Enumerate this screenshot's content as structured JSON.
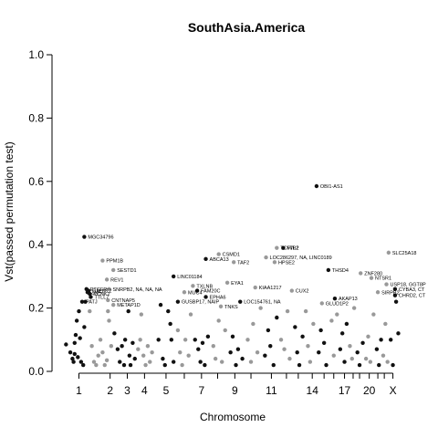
{
  "chart_data": {
    "type": "scatter",
    "title": "SouthAsia.America",
    "xlabel": "Chromosome",
    "ylabel": "Vst(passed permutation test)",
    "ylim": [
      0,
      1
    ],
    "yticks": [
      "0.0",
      "0.2",
      "0.4",
      "0.6",
      "0.8",
      "1.0"
    ],
    "ytick_values": [
      0,
      0.2,
      0.4,
      0.6,
      0.8,
      1.0
    ],
    "xticks": [
      "1",
      "2",
      "3",
      "4",
      "5",
      "7",
      "9",
      "11",
      "14",
      "17",
      "20",
      "X"
    ],
    "xtick_positions": [
      1,
      2,
      3,
      4,
      5,
      7,
      9,
      11,
      14,
      17,
      20,
      23
    ],
    "chromosome_boundaries": [
      1,
      2,
      3,
      4,
      5,
      6,
      7,
      8,
      9,
      10,
      11,
      12,
      13,
      14,
      15,
      16,
      17,
      18,
      19,
      20,
      21,
      22,
      23
    ],
    "point_colors": {
      "odd": "#111111",
      "even": "#999999"
    },
    "labeled_points": [
      {
        "label": "MGC34796",
        "chr": 1,
        "x": 0.95,
        "y": 0.425
      },
      {
        "label": "PATJ",
        "chr": 1,
        "x": 0.85,
        "y": 0.22
      },
      {
        "label": "PTGFR",
        "chr": 1,
        "x": 1.05,
        "y": 0.26
      },
      {
        "label": "GALNT2",
        "chr": 1,
        "x": 1.15,
        "y": 0.255
      },
      {
        "label": "ZNF7",
        "chr": 1,
        "x": 1.1,
        "y": 0.25
      },
      {
        "label": "KCNK2",
        "chr": 1,
        "x": 1.2,
        "y": 0.245
      },
      {
        "label": "TTLL7",
        "chr": 1,
        "x": 1.25,
        "y": 0.235
      },
      {
        "label": "PPM1B",
        "chr": 2,
        "x": 1.8,
        "y": 0.35
      },
      {
        "label": "SESTD1",
        "chr": 2,
        "x": 2.3,
        "y": 0.32
      },
      {
        "label": "REV1",
        "chr": 2,
        "x": 2.0,
        "y": 0.29
      },
      {
        "label": "SNRPB2, NA, NA, NA",
        "chr": 2,
        "x": 2.1,
        "y": 0.26
      },
      {
        "label": "CNTNAP5",
        "chr": 2,
        "x": 2.05,
        "y": 0.225
      },
      {
        "label": "METAP1D",
        "chr": 2,
        "x": 2.3,
        "y": 0.21
      },
      {
        "label": "LINC01184",
        "chr": 5,
        "x": 5.1,
        "y": 0.3
      },
      {
        "label": "ABCA13",
        "chr": 7,
        "x": 6.6,
        "y": 0.355
      },
      {
        "label": "CSMD1",
        "chr": 8,
        "x": 7.2,
        "y": 0.37
      },
      {
        "label": "TXLNB",
        "chr": 6,
        "x": 6.0,
        "y": 0.27
      },
      {
        "label": "MUC4",
        "chr": 6,
        "x": 5.6,
        "y": 0.25
      },
      {
        "label": "FAM20C",
        "chr": 7,
        "x": 6.2,
        "y": 0.255
      },
      {
        "label": "EPHA6",
        "chr": 7,
        "x": 6.6,
        "y": 0.235
      },
      {
        "label": "GUSBP17, NAIP",
        "chr": 5,
        "x": 5.3,
        "y": 0.22
      },
      {
        "label": "TNKS",
        "chr": 8,
        "x": 7.3,
        "y": 0.205
      },
      {
        "label": "EYA1",
        "chr": 8,
        "x": 7.6,
        "y": 0.28
      },
      {
        "label": "TAF2",
        "chr": 8,
        "x": 7.9,
        "y": 0.345
      },
      {
        "label": "LOC154761, NA",
        "chr": 9,
        "x": 8.2,
        "y": 0.22
      },
      {
        "label": "KIAA1217",
        "chr": 10,
        "x": 8.9,
        "y": 0.265
      },
      {
        "label": "TCF7L2",
        "chr": 10,
        "x": 9.9,
        "y": 0.39
      },
      {
        "label": "MIR2",
        "chr": 11,
        "x": 10.2,
        "y": 0.39
      },
      {
        "label": "LOC286297, NA, LINC0189",
        "chr": 10,
        "x": 9.4,
        "y": 0.36
      },
      {
        "label": "HPSE2",
        "chr": 10,
        "x": 9.8,
        "y": 0.345
      },
      {
        "label": "CUX2",
        "chr": 12,
        "x": 10.6,
        "y": 0.255
      },
      {
        "label": "OBI1-AS1",
        "chr": 13,
        "x": 11.75,
        "y": 0.585
      },
      {
        "label": "THSD4",
        "chr": 15,
        "x": 12.3,
        "y": 0.32
      },
      {
        "label": "AKAP13",
        "chr": 15,
        "x": 12.6,
        "y": 0.23
      },
      {
        "label": "GLUD1P2",
        "chr": 14,
        "x": 12.0,
        "y": 0.215
      },
      {
        "label": "SIRPB2",
        "chr": 20,
        "x": 14.6,
        "y": 0.25
      },
      {
        "label": "ZNF280",
        "chr": 18,
        "x": 13.8,
        "y": 0.31
      },
      {
        "label": "NTSR1",
        "chr": 20,
        "x": 14.3,
        "y": 0.295
      },
      {
        "label": "SLC25A18",
        "chr": 22,
        "x": 15.1,
        "y": 0.375
      },
      {
        "label": "USP18, GGT8P",
        "chr": 22,
        "x": 15.0,
        "y": 0.275
      },
      {
        "label": "CYBA3, CT",
        "chr": 23,
        "x": 15.4,
        "y": 0.26
      },
      {
        "label": "CHRD2, CT",
        "chr": 23,
        "x": 15.4,
        "y": 0.24
      }
    ],
    "background_points": [
      {
        "chr": 1,
        "x": 0.1,
        "y": 0.085
      },
      {
        "chr": 1,
        "x": 0.3,
        "y": 0.06
      },
      {
        "chr": 1,
        "x": 0.4,
        "y": 0.04
      },
      {
        "chr": 1,
        "x": 0.45,
        "y": 0.03
      },
      {
        "chr": 1,
        "x": 0.5,
        "y": 0.055
      },
      {
        "chr": 1,
        "x": 0.55,
        "y": 0.115
      },
      {
        "chr": 1,
        "x": 0.6,
        "y": 0.16
      },
      {
        "chr": 1,
        "x": 0.7,
        "y": 0.19
      },
      {
        "chr": 1,
        "x": 0.75,
        "y": 0.105
      },
      {
        "chr": 1,
        "x": 0.8,
        "y": 0.03
      },
      {
        "chr": 1,
        "x": 0.9,
        "y": 0.02
      },
      {
        "chr": 1,
        "x": 0.95,
        "y": 0.14
      },
      {
        "chr": 1,
        "x": 1.0,
        "y": 0.22
      },
      {
        "chr": 1,
        "x": 0.5,
        "y": 0.09
      },
      {
        "chr": 1,
        "x": 0.65,
        "y": 0.045
      },
      {
        "chr": 2,
        "x": 1.2,
        "y": 0.19
      },
      {
        "chr": 2,
        "x": 1.3,
        "y": 0.08
      },
      {
        "chr": 2,
        "x": 1.4,
        "y": 0.03
      },
      {
        "chr": 2,
        "x": 1.5,
        "y": 0.02
      },
      {
        "chr": 2,
        "x": 1.6,
        "y": 0.05
      },
      {
        "chr": 2,
        "x": 1.7,
        "y": 0.1
      },
      {
        "chr": 2,
        "x": 1.8,
        "y": 0.06
      },
      {
        "chr": 2,
        "x": 1.9,
        "y": 0.02
      },
      {
        "chr": 2,
        "x": 2.0,
        "y": 0.035
      },
      {
        "chr": 2,
        "x": 2.1,
        "y": 0.16
      },
      {
        "chr": 2,
        "x": 2.2,
        "y": 0.08
      },
      {
        "chr": 2,
        "x": 2.05,
        "y": 0.19
      },
      {
        "chr": 3,
        "x": 2.35,
        "y": 0.12
      },
      {
        "chr": 3,
        "x": 2.5,
        "y": 0.07
      },
      {
        "chr": 3,
        "x": 2.6,
        "y": 0.03
      },
      {
        "chr": 3,
        "x": 2.7,
        "y": 0.08
      },
      {
        "chr": 3,
        "x": 2.8,
        "y": 0.02
      },
      {
        "chr": 3,
        "x": 2.85,
        "y": 0.1
      },
      {
        "chr": 3,
        "x": 3.0,
        "y": 0.19
      },
      {
        "chr": 3,
        "x": 3.05,
        "y": 0.05
      },
      {
        "chr": 3,
        "x": 3.1,
        "y": 0.02
      },
      {
        "chr": 3,
        "x": 3.2,
        "y": 0.09
      },
      {
        "chr": 3,
        "x": 3.3,
        "y": 0.04
      },
      {
        "chr": 4,
        "x": 3.45,
        "y": 0.07
      },
      {
        "chr": 4,
        "x": 3.55,
        "y": 0.1
      },
      {
        "chr": 4,
        "x": 3.6,
        "y": 0.18
      },
      {
        "chr": 4,
        "x": 3.7,
        "y": 0.05
      },
      {
        "chr": 4,
        "x": 3.8,
        "y": 0.02
      },
      {
        "chr": 4,
        "x": 3.9,
        "y": 0.08
      },
      {
        "chr": 4,
        "x": 4.0,
        "y": 0.03
      },
      {
        "chr": 4,
        "x": 4.1,
        "y": 0.06
      },
      {
        "chr": 5,
        "x": 4.4,
        "y": 0.1
      },
      {
        "chr": 5,
        "x": 4.5,
        "y": 0.21
      },
      {
        "chr": 5,
        "x": 4.6,
        "y": 0.04
      },
      {
        "chr": 5,
        "x": 4.7,
        "y": 0.02
      },
      {
        "chr": 5,
        "x": 4.85,
        "y": 0.19
      },
      {
        "chr": 5,
        "x": 4.95,
        "y": 0.15
      },
      {
        "chr": 5,
        "x": 5.0,
        "y": 0.1
      },
      {
        "chr": 5,
        "x": 5.1,
        "y": 0.03
      },
      {
        "chr": 6,
        "x": 5.3,
        "y": 0.13
      },
      {
        "chr": 6,
        "x": 5.4,
        "y": 0.06
      },
      {
        "chr": 6,
        "x": 5.5,
        "y": 0.02
      },
      {
        "chr": 6,
        "x": 5.65,
        "y": 0.1
      },
      {
        "chr": 6,
        "x": 5.8,
        "y": 0.05
      },
      {
        "chr": 6,
        "x": 5.9,
        "y": 0.18
      },
      {
        "chr": 7,
        "x": 6.1,
        "y": 0.1
      },
      {
        "chr": 7,
        "x": 6.25,
        "y": 0.07
      },
      {
        "chr": 7,
        "x": 6.35,
        "y": 0.03
      },
      {
        "chr": 7,
        "x": 6.45,
        "y": 0.09
      },
      {
        "chr": 7,
        "x": 6.55,
        "y": 0.02
      },
      {
        "chr": 7,
        "x": 6.7,
        "y": 0.11
      },
      {
        "chr": 8,
        "x": 6.95,
        "y": 0.08
      },
      {
        "chr": 8,
        "x": 7.05,
        "y": 0.04
      },
      {
        "chr": 8,
        "x": 7.2,
        "y": 0.16
      },
      {
        "chr": 8,
        "x": 7.35,
        "y": 0.03
      },
      {
        "chr": 8,
        "x": 7.5,
        "y": 0.13
      },
      {
        "chr": 9,
        "x": 7.75,
        "y": 0.06
      },
      {
        "chr": 9,
        "x": 7.85,
        "y": 0.11
      },
      {
        "chr": 9,
        "x": 8.0,
        "y": 0.02
      },
      {
        "chr": 9,
        "x": 8.1,
        "y": 0.07
      },
      {
        "chr": 9,
        "x": 8.3,
        "y": 0.04
      },
      {
        "chr": 10,
        "x": 8.55,
        "y": 0.1
      },
      {
        "chr": 10,
        "x": 8.7,
        "y": 0.03
      },
      {
        "chr": 10,
        "x": 8.8,
        "y": 0.15
      },
      {
        "chr": 10,
        "x": 9.0,
        "y": 0.06
      },
      {
        "chr": 10,
        "x": 9.15,
        "y": 0.2
      },
      {
        "chr": 11,
        "x": 9.35,
        "y": 0.05
      },
      {
        "chr": 11,
        "x": 9.5,
        "y": 0.13
      },
      {
        "chr": 11,
        "x": 9.6,
        "y": 0.08
      },
      {
        "chr": 11,
        "x": 9.75,
        "y": 0.02
      },
      {
        "chr": 11,
        "x": 9.9,
        "y": 0.17
      },
      {
        "chr": 12,
        "x": 10.1,
        "y": 0.1
      },
      {
        "chr": 12,
        "x": 10.25,
        "y": 0.07
      },
      {
        "chr": 12,
        "x": 10.4,
        "y": 0.19
      },
      {
        "chr": 12,
        "x": 10.5,
        "y": 0.04
      },
      {
        "chr": 13,
        "x": 10.75,
        "y": 0.14
      },
      {
        "chr": 13,
        "x": 10.85,
        "y": 0.06
      },
      {
        "chr": 13,
        "x": 10.95,
        "y": 0.02
      },
      {
        "chr": 13,
        "x": 11.1,
        "y": 0.11
      },
      {
        "chr": 14,
        "x": 11.25,
        "y": 0.19
      },
      {
        "chr": 14,
        "x": 11.35,
        "y": 0.08
      },
      {
        "chr": 14,
        "x": 11.45,
        "y": 0.03
      },
      {
        "chr": 14,
        "x": 11.6,
        "y": 0.15
      },
      {
        "chr": 15,
        "x": 11.85,
        "y": 0.06
      },
      {
        "chr": 15,
        "x": 11.95,
        "y": 0.13
      },
      {
        "chr": 15,
        "x": 12.1,
        "y": 0.09
      },
      {
        "chr": 15,
        "x": 12.2,
        "y": 0.02
      },
      {
        "chr": 16,
        "x": 12.45,
        "y": 0.16
      },
      {
        "chr": 16,
        "x": 12.55,
        "y": 0.05
      },
      {
        "chr": 16,
        "x": 12.7,
        "y": 0.18
      },
      {
        "chr": 17,
        "x": 12.85,
        "y": 0.07
      },
      {
        "chr": 17,
        "x": 12.95,
        "y": 0.12
      },
      {
        "chr": 17,
        "x": 13.05,
        "y": 0.03
      },
      {
        "chr": 17,
        "x": 13.15,
        "y": 0.15
      },
      {
        "chr": 18,
        "x": 13.3,
        "y": 0.08
      },
      {
        "chr": 18,
        "x": 13.4,
        "y": 0.04
      },
      {
        "chr": 18,
        "x": 13.5,
        "y": 0.2
      },
      {
        "chr": 19,
        "x": 13.65,
        "y": 0.06
      },
      {
        "chr": 19,
        "x": 13.75,
        "y": 0.02
      },
      {
        "chr": 19,
        "x": 13.9,
        "y": 0.09
      },
      {
        "chr": 20,
        "x": 14.05,
        "y": 0.04
      },
      {
        "chr": 20,
        "x": 14.15,
        "y": 0.11
      },
      {
        "chr": 20,
        "x": 14.25,
        "y": 0.03
      },
      {
        "chr": 20,
        "x": 14.4,
        "y": 0.18
      },
      {
        "chr": 21,
        "x": 14.55,
        "y": 0.07
      },
      {
        "chr": 21,
        "x": 14.65,
        "y": 0.02
      },
      {
        "chr": 21,
        "x": 14.75,
        "y": 0.1
      },
      {
        "chr": 22,
        "x": 14.85,
        "y": 0.05
      },
      {
        "chr": 22,
        "x": 14.95,
        "y": 0.15
      },
      {
        "chr": 22,
        "x": 15.05,
        "y": 0.03
      },
      {
        "chr": 23,
        "x": 15.2,
        "y": 0.1
      },
      {
        "chr": 23,
        "x": 15.3,
        "y": 0.02
      },
      {
        "chr": 23,
        "x": 15.45,
        "y": 0.22
      },
      {
        "chr": 23,
        "x": 15.55,
        "y": 0.12
      }
    ],
    "grid": false,
    "legend": "none"
  }
}
